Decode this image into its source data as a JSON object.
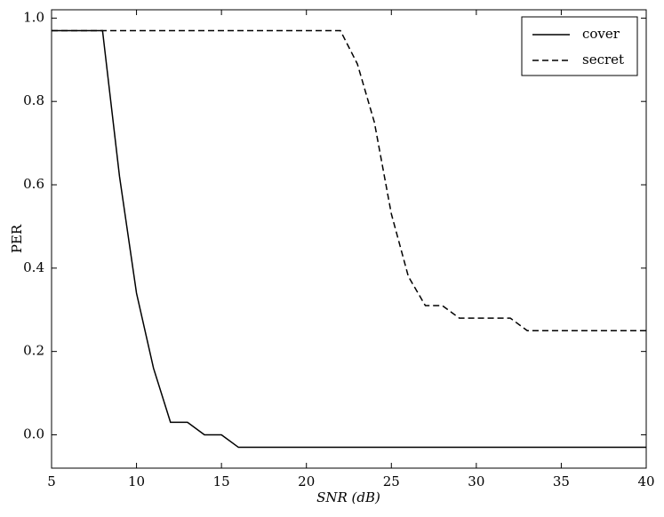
{
  "chart_data": {
    "type": "line",
    "xlabel": "SNR (dB)",
    "ylabel": "PER",
    "x": [
      5,
      6,
      7,
      8,
      9,
      10,
      11,
      12,
      13,
      14,
      15,
      16,
      17,
      18,
      19,
      20,
      21,
      22,
      23,
      24,
      25,
      26,
      27,
      28,
      29,
      30,
      31,
      32,
      33,
      34,
      35,
      36,
      37,
      38,
      39,
      40
    ],
    "series": [
      {
        "name": "cover",
        "color": "#000000",
        "dash": "solid",
        "values": [
          0.97,
          0.97,
          0.97,
          0.97,
          0.62,
          0.34,
          0.16,
          0.03,
          0.03,
          0.0,
          0.0,
          -0.03,
          -0.03,
          -0.03,
          -0.03,
          -0.03,
          -0.03,
          -0.03,
          -0.03,
          -0.03,
          -0.03,
          -0.03,
          -0.03,
          -0.03,
          -0.03,
          -0.03,
          -0.03,
          -0.03,
          -0.03,
          -0.03,
          -0.03,
          -0.03,
          -0.03,
          -0.03,
          -0.03,
          -0.03
        ]
      },
      {
        "name": "secret",
        "color": "#000000",
        "dash": "dashed",
        "values": [
          0.97,
          0.97,
          0.97,
          0.97,
          0.97,
          0.97,
          0.97,
          0.97,
          0.97,
          0.97,
          0.97,
          0.97,
          0.97,
          0.97,
          0.97,
          0.97,
          0.97,
          0.97,
          0.89,
          0.75,
          0.53,
          0.38,
          0.31,
          0.31,
          0.28,
          0.28,
          0.28,
          0.28,
          0.25,
          0.25,
          0.25,
          0.25,
          0.25,
          0.25,
          0.25,
          0.25
        ]
      }
    ],
    "xlim": [
      5,
      40
    ],
    "xticks": [
      5,
      10,
      15,
      20,
      25,
      30,
      35,
      40
    ],
    "ylim": [
      -0.08,
      1.02
    ],
    "yticks": [
      {
        "value": 0,
        "label": "0.0"
      },
      0.2,
      0.4,
      0.6,
      0.8,
      {
        "value": 1,
        "label": "1.0"
      }
    ],
    "legend": "upper-right",
    "grid": false
  }
}
